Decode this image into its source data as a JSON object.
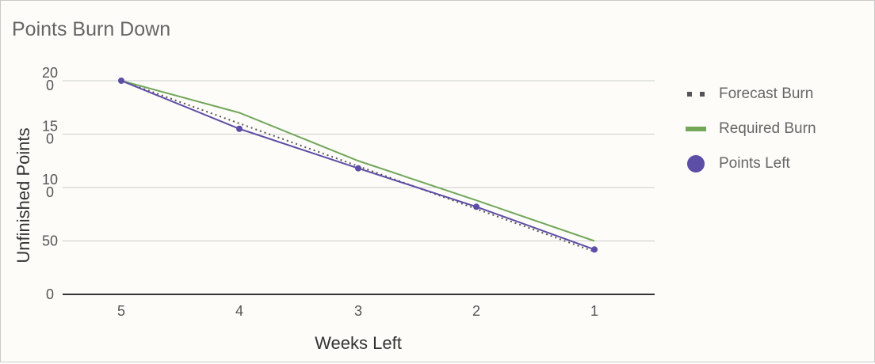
{
  "chart_data": {
    "type": "line",
    "title": "Points Burn Down",
    "xlabel": "Weeks Left",
    "ylabel": "Unfinished Points",
    "categories": [
      "5",
      "4",
      "3",
      "2",
      "1"
    ],
    "y_ticks": [
      {
        "value": 0,
        "line1": "0",
        "line2": ""
      },
      {
        "value": 50,
        "line1": "50",
        "line2": ""
      },
      {
        "value": 100,
        "line1": "10",
        "line2": "0"
      },
      {
        "value": 150,
        "line1": "15",
        "line2": "0"
      },
      {
        "value": 200,
        "line1": "20",
        "line2": "0"
      }
    ],
    "ylim": [
      0,
      200
    ],
    "grid": true,
    "legend_position": "right",
    "series": [
      {
        "name": "Forecast Burn",
        "style": "dotted",
        "color": "#555555",
        "values": [
          200,
          160,
          120,
          80,
          40
        ]
      },
      {
        "name": "Required Burn",
        "style": "line",
        "color": "#72a65b",
        "values": [
          200,
          170,
          125,
          88,
          50
        ]
      },
      {
        "name": "Points Left",
        "style": "line-markers",
        "color": "#5c4da7",
        "values": [
          200,
          155,
          118,
          82,
          42
        ]
      }
    ]
  },
  "legend": {
    "items": [
      {
        "label": "Forecast Burn",
        "swatch": "dots"
      },
      {
        "label": "Required Burn",
        "swatch": "line"
      },
      {
        "label": "Points Left",
        "swatch": "circle"
      }
    ]
  }
}
